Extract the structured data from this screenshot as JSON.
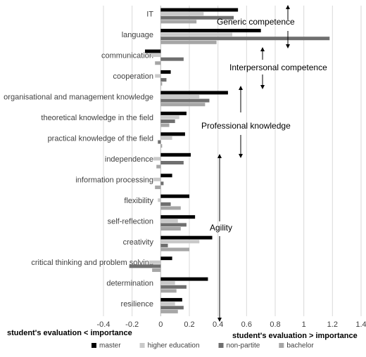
{
  "chart_data": {
    "type": "hbar",
    "categories": [
      "IT",
      "language",
      "communication",
      "cooperation",
      "organisational and management knowledge",
      "theoretical knowledge in the field",
      "practical knowledge of the field",
      "independence",
      "information processing",
      "flexibility",
      "self-reflection",
      "creativity",
      "critical thinking and problem solving",
      "determination",
      "resilience"
    ],
    "series": [
      {
        "name": "master",
        "color": "#000000",
        "values": [
          0.54,
          0.7,
          -0.11,
          0.07,
          0.47,
          0.18,
          0.17,
          0.21,
          0.08,
          0.2,
          0.24,
          0.36,
          0.08,
          0.33,
          0.15
        ]
      },
      {
        "name": "higher education",
        "color": "#c9c9c9",
        "values": [
          0.3,
          0.5,
          -0.07,
          -0.04,
          0.27,
          0.13,
          0.08,
          -0.05,
          -0.05,
          -0.02,
          0.12,
          0.27,
          -0.08,
          0.1,
          0.1
        ]
      },
      {
        "name": "non-partite",
        "color": "#6f6f6f",
        "values": [
          0.51,
          1.18,
          0.16,
          0.04,
          0.34,
          0.1,
          -0.02,
          0.16,
          0.02,
          0.07,
          0.18,
          0.05,
          -0.22,
          0.18,
          0.16
        ]
      },
      {
        "name": "bachelor",
        "color": "#a6a6a6",
        "values": [
          0.25,
          0.39,
          -0.04,
          0.01,
          0.31,
          0.06,
          0.01,
          -0.03,
          -0.04,
          0.14,
          0.14,
          0.2,
          -0.06,
          0.11,
          0.12
        ]
      }
    ],
    "xlim": [
      -0.4,
      1.4
    ],
    "xticks": [
      -0.4,
      -0.2,
      0,
      0.2,
      0.4,
      0.6,
      0.8,
      1,
      1.2,
      1.4
    ],
    "grid": true,
    "legend": "bottom",
    "xlabel_left": "student's evaluation < importance",
    "xlabel_right": "student's evaluation > importance",
    "annotations": [
      "Generic competence",
      "Interpersonal competence",
      "Professional knowledge",
      "Agility"
    ]
  }
}
